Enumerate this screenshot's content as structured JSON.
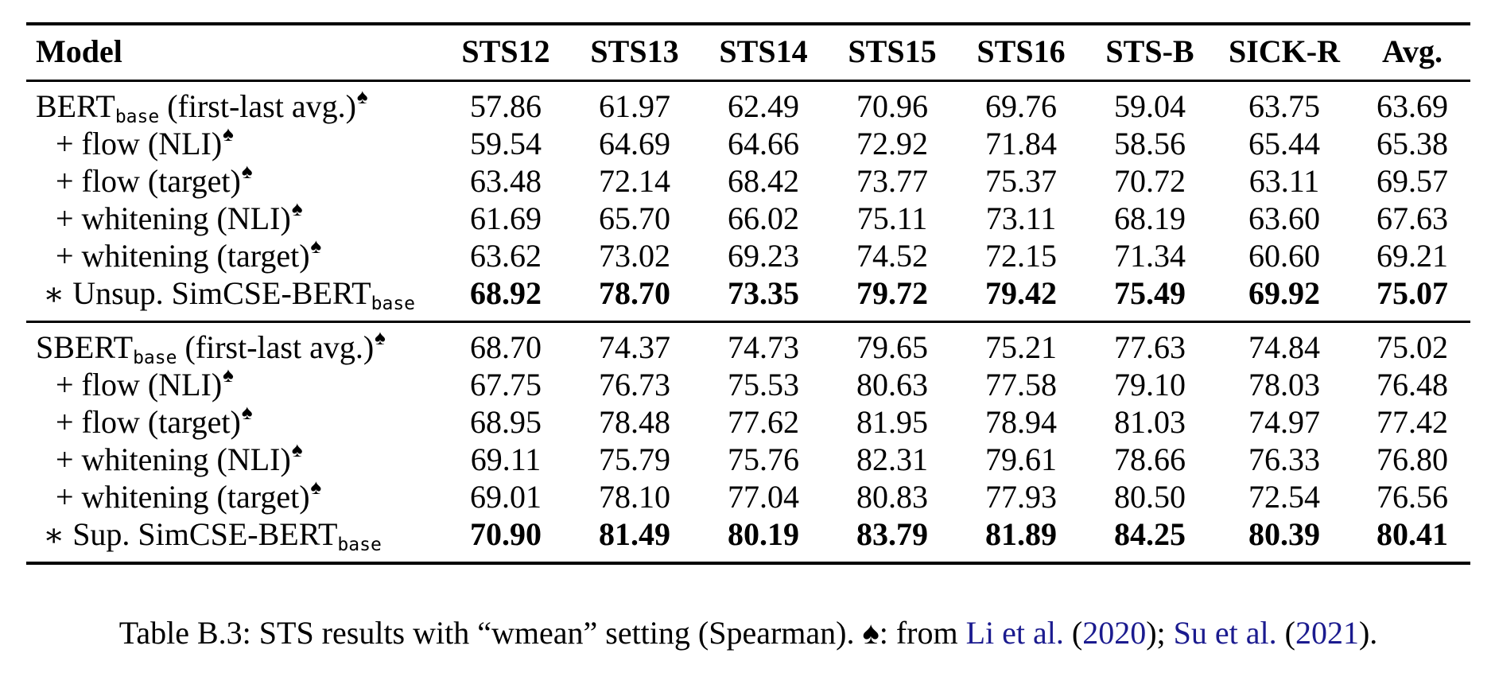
{
  "colors": {
    "text": "#000000",
    "link_blue": "#1b1b8f",
    "background": "#ffffff"
  },
  "symbols": {
    "spade": "♠",
    "star": "∗"
  },
  "table": {
    "columns": [
      "Model",
      "STS12",
      "STS13",
      "STS14",
      "STS15",
      "STS16",
      "STS-B",
      "SICK-R",
      "Avg."
    ],
    "sections": [
      {
        "rows": [
          {
            "main": "BERT",
            "sub": "base",
            "tail": " (first-last avg.)",
            "spade": true,
            "star": null,
            "indent": "none",
            "bold": false,
            "values": [
              "57.86",
              "61.97",
              "62.49",
              "70.96",
              "69.76",
              "59.04",
              "63.75",
              "63.69"
            ]
          },
          {
            "main": "+ flow (NLI)",
            "sub": null,
            "tail": "",
            "spade": true,
            "star": null,
            "indent": "plus",
            "bold": false,
            "values": [
              "59.54",
              "64.69",
              "64.66",
              "72.92",
              "71.84",
              "58.56",
              "65.44",
              "65.38"
            ]
          },
          {
            "main": "+ flow (target)",
            "sub": null,
            "tail": "",
            "spade": true,
            "star": null,
            "indent": "plus",
            "bold": false,
            "values": [
              "63.48",
              "72.14",
              "68.42",
              "73.77",
              "75.37",
              "70.72",
              "63.11",
              "69.57"
            ]
          },
          {
            "main": "+ whitening (NLI)",
            "sub": null,
            "tail": "",
            "spade": true,
            "star": null,
            "indent": "plus",
            "bold": false,
            "values": [
              "61.69",
              "65.70",
              "66.02",
              "75.11",
              "73.11",
              "68.19",
              "63.60",
              "67.63"
            ]
          },
          {
            "main": "+ whitening (target)",
            "sub": null,
            "tail": "",
            "spade": true,
            "star": null,
            "indent": "plus",
            "bold": false,
            "values": [
              "63.62",
              "73.02",
              "69.23",
              "74.52",
              "72.15",
              "71.34",
              "60.60",
              "69.21"
            ]
          },
          {
            "main": "Unsup. SimCSE-BERT",
            "sub": "base",
            "tail": "",
            "spade": false,
            "star": "∗",
            "indent": "star",
            "bold": true,
            "values": [
              "68.92",
              "78.70",
              "73.35",
              "79.72",
              "79.42",
              "75.49",
              "69.92",
              "75.07"
            ]
          }
        ]
      },
      {
        "rows": [
          {
            "main": "SBERT",
            "sub": "base",
            "tail": " (first-last avg.)",
            "spade": true,
            "star": null,
            "indent": "none",
            "bold": false,
            "values": [
              "68.70",
              "74.37",
              "74.73",
              "79.65",
              "75.21",
              "77.63",
              "74.84",
              "75.02"
            ]
          },
          {
            "main": "+ flow (NLI)",
            "sub": null,
            "tail": "",
            "spade": true,
            "star": null,
            "indent": "plus",
            "bold": false,
            "values": [
              "67.75",
              "76.73",
              "75.53",
              "80.63",
              "77.58",
              "79.10",
              "78.03",
              "76.48"
            ]
          },
          {
            "main": "+ flow (target)",
            "sub": null,
            "tail": "",
            "spade": true,
            "star": null,
            "indent": "plus",
            "bold": false,
            "values": [
              "68.95",
              "78.48",
              "77.62",
              "81.95",
              "78.94",
              "81.03",
              "74.97",
              "77.42"
            ]
          },
          {
            "main": "+ whitening (NLI)",
            "sub": null,
            "tail": "",
            "spade": true,
            "star": null,
            "indent": "plus",
            "bold": false,
            "values": [
              "69.11",
              "75.79",
              "75.76",
              "82.31",
              "79.61",
              "78.66",
              "76.33",
              "76.80"
            ]
          },
          {
            "main": "+ whitening (target)",
            "sub": null,
            "tail": "",
            "spade": true,
            "star": null,
            "indent": "plus",
            "bold": false,
            "values": [
              "69.01",
              "78.10",
              "77.04",
              "80.83",
              "77.93",
              "80.50",
              "72.54",
              "76.56"
            ]
          },
          {
            "main": "Sup. SimCSE-BERT",
            "sub": "base",
            "tail": "",
            "spade": false,
            "star": "∗",
            "indent": "star",
            "bold": true,
            "values": [
              "70.90",
              "81.49",
              "80.19",
              "83.79",
              "81.89",
              "84.25",
              "80.39",
              "80.41"
            ]
          }
        ]
      }
    ]
  },
  "caption": {
    "segments": [
      {
        "text": "Table B.3: STS results with “wmean” setting (Spearman). ♠: from ",
        "link": false
      },
      {
        "text": "Li et al.",
        "link": true
      },
      {
        "text": " (",
        "link": false
      },
      {
        "text": "2020",
        "link": true
      },
      {
        "text": "); ",
        "link": false
      },
      {
        "text": "Su et al.",
        "link": true
      },
      {
        "text": " (",
        "link": false
      },
      {
        "text": "2021",
        "link": true
      },
      {
        "text": ").",
        "link": false
      }
    ]
  }
}
